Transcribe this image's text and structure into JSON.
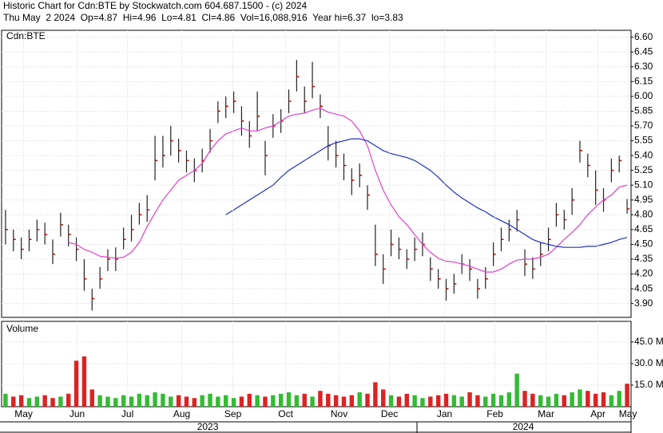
{
  "header": {
    "title": "Historic Chart for Cdn:BTE by Stockwatch.com 604.687.1500 - (c) 2024",
    "quote": "Thu May  2 2024  Op=4.87  Hi=4.96  Lo=4.81  Cl=4.86  Vol=16,088,916  Year hi=6.37  lo=3.83"
  },
  "chart_data": [
    {
      "type": "ohlc",
      "label": "Cdn:BTE",
      "color": "#222222",
      "close_color": "#cc0000",
      "grid": true,
      "xlim": [
        -0.5,
        79.5
      ],
      "ylim": [
        3.76,
        6.67
      ],
      "yticks": [
        {
          "value": 3.9,
          "label": "3.90"
        },
        4.05,
        {
          "value": 4.2,
          "label": "4.20"
        },
        4.35,
        {
          "value": 4.5,
          "label": "4.50"
        },
        4.65,
        {
          "value": 4.8,
          "label": "4.80"
        },
        4.95,
        {
          "value": 5.1,
          "label": "5.10"
        },
        5.25,
        {
          "value": 5.4,
          "label": "5.40"
        },
        5.55,
        {
          "value": 5.7,
          "label": "5.70"
        },
        5.85,
        {
          "value": 6.0,
          "label": "6.00"
        },
        6.15,
        {
          "value": 6.3,
          "label": "6.30"
        },
        6.45,
        {
          "value": 6.6,
          "label": "6.60"
        }
      ],
      "high": [
        4.85,
        4.65,
        4.57,
        4.65,
        4.75,
        4.72,
        4.55,
        4.82,
        4.7,
        4.57,
        4.35,
        4.05,
        4.27,
        4.45,
        4.47,
        4.67,
        4.8,
        4.92,
        5.0,
        5.6,
        5.6,
        5.7,
        5.57,
        5.45,
        5.37,
        5.47,
        5.67,
        5.95,
        6.0,
        6.05,
        5.9,
        5.75,
        6.05,
        5.55,
        5.82,
        5.87,
        6.07,
        6.37,
        6.1,
        6.35,
        6.02,
        5.7,
        5.55,
        5.42,
        5.27,
        5.32,
        5.1,
        4.7,
        4.4,
        4.65,
        4.57,
        4.45,
        4.57,
        4.62,
        4.37,
        4.25,
        4.15,
        4.2,
        4.4,
        4.35,
        4.15,
        4.27,
        4.52,
        4.67,
        4.75,
        4.85,
        4.45,
        4.37,
        4.52,
        4.67,
        4.92,
        4.85,
        5.07,
        5.55,
        5.42,
        5.25,
        5.07,
        5.37,
        5.4,
        4.96
      ],
      "low": [
        4.5,
        4.43,
        4.35,
        4.43,
        4.53,
        4.5,
        4.3,
        4.58,
        4.48,
        4.33,
        4.03,
        3.83,
        4.05,
        4.23,
        4.23,
        4.45,
        4.53,
        4.7,
        4.73,
        5.15,
        5.28,
        5.4,
        5.33,
        5.23,
        5.13,
        5.23,
        5.43,
        5.73,
        5.78,
        5.83,
        5.6,
        5.48,
        5.65,
        5.2,
        5.58,
        5.63,
        5.83,
        6.05,
        5.83,
        5.98,
        5.78,
        5.35,
        5.28,
        5.15,
        5.0,
        5.08,
        4.85,
        4.28,
        4.1,
        4.38,
        4.35,
        4.25,
        4.33,
        4.38,
        4.13,
        4.05,
        3.93,
        4.0,
        4.2,
        4.13,
        3.95,
        4.05,
        4.28,
        4.43,
        4.53,
        4.63,
        4.18,
        4.15,
        4.28,
        4.43,
        4.68,
        4.65,
        4.8,
        5.33,
        5.18,
        4.9,
        4.83,
        5.13,
        5.23,
        4.81
      ],
      "close": [
        4.65,
        4.55,
        4.45,
        4.55,
        4.65,
        4.6,
        4.4,
        4.7,
        4.6,
        4.45,
        4.15,
        3.95,
        4.15,
        4.35,
        4.35,
        4.55,
        4.65,
        4.8,
        4.85,
        5.35,
        5.4,
        5.55,
        5.45,
        5.35,
        5.25,
        5.35,
        5.55,
        5.85,
        5.9,
        5.95,
        5.75,
        5.6,
        5.8,
        5.4,
        5.7,
        5.75,
        5.95,
        6.2,
        5.95,
        6.1,
        5.9,
        5.5,
        5.4,
        5.3,
        5.15,
        5.2,
        5.0,
        4.4,
        4.25,
        4.5,
        4.45,
        4.35,
        4.45,
        4.5,
        4.25,
        4.15,
        4.05,
        4.1,
        4.3,
        4.25,
        4.05,
        4.15,
        4.4,
        4.55,
        4.65,
        4.75,
        4.3,
        4.25,
        4.4,
        4.55,
        4.8,
        4.75,
        4.95,
        5.45,
        5.3,
        5.05,
        4.95,
        5.25,
        5.35,
        4.86
      ],
      "lines": [
        {
          "color": "#e040d0",
          "values": [
            null,
            null,
            null,
            null,
            null,
            null,
            null,
            null,
            4.52,
            4.5,
            4.45,
            4.42,
            4.38,
            4.37,
            4.36,
            4.37,
            4.42,
            4.52,
            4.68,
            4.82,
            4.95,
            5.05,
            5.15,
            5.2,
            5.25,
            5.32,
            5.45,
            5.55,
            5.62,
            5.65,
            5.68,
            5.65,
            5.65,
            5.68,
            5.7,
            5.75,
            5.8,
            5.82,
            5.83,
            5.86,
            5.88,
            5.84,
            5.82,
            5.8,
            5.75,
            5.65,
            5.5,
            5.25,
            5.05,
            4.9,
            4.78,
            4.7,
            4.6,
            4.5,
            4.42,
            4.36,
            4.33,
            4.32,
            4.3,
            4.28,
            4.25,
            4.22,
            4.22,
            4.25,
            4.3,
            4.34,
            4.35,
            4.35,
            4.37,
            4.4,
            4.47,
            4.55,
            4.62,
            4.7,
            4.8,
            4.88,
            4.95,
            5.0,
            5.08,
            5.1
          ]
        },
        {
          "color": "#2030c0",
          "values": [
            null,
            null,
            null,
            null,
            null,
            null,
            null,
            null,
            null,
            null,
            null,
            null,
            null,
            null,
            null,
            null,
            null,
            null,
            null,
            null,
            null,
            null,
            null,
            null,
            null,
            null,
            null,
            null,
            4.8,
            4.85,
            4.9,
            4.95,
            5.0,
            5.05,
            5.1,
            5.18,
            5.25,
            5.3,
            5.35,
            5.4,
            5.45,
            5.5,
            5.53,
            5.55,
            5.57,
            5.57,
            5.55,
            5.5,
            5.45,
            5.42,
            5.4,
            5.38,
            5.35,
            5.3,
            5.25,
            5.18,
            5.1,
            5.03,
            4.97,
            4.92,
            4.87,
            4.83,
            4.78,
            4.74,
            4.7,
            4.65,
            4.6,
            4.55,
            4.52,
            4.5,
            4.48,
            4.47,
            4.47,
            4.47,
            4.48,
            4.48,
            4.5,
            4.52,
            4.55,
            4.57
          ]
        }
      ]
    },
    {
      "type": "bar",
      "title": "Volume",
      "up_color": "#33bb33",
      "down_color": "#dd2222",
      "grid": true,
      "xlim": [
        -0.5,
        79.5
      ],
      "ylim": [
        0,
        59.4
      ],
      "yticks": [
        {
          "value": 15,
          "label": "15.0 M"
        },
        {
          "value": 30,
          "label": "30.0 M"
        },
        {
          "value": 45,
          "label": "45.0 M"
        }
      ],
      "values": [
        9,
        7,
        8,
        6,
        7,
        8,
        6,
        7,
        9,
        32,
        35,
        12,
        8,
        7,
        6,
        8,
        7,
        9,
        8,
        10,
        9,
        7,
        8,
        7,
        6,
        8,
        9,
        7,
        8,
        6,
        7,
        9,
        8,
        7,
        8,
        9,
        10,
        8,
        9,
        7,
        11,
        9,
        8,
        7,
        8,
        10,
        9,
        17,
        12,
        8,
        7,
        9,
        8,
        6,
        7,
        8,
        9,
        8,
        7,
        10,
        8,
        7,
        9,
        8,
        10,
        23,
        11,
        9,
        8,
        7,
        9,
        8,
        10,
        12,
        11,
        9,
        10,
        8,
        11,
        16
      ],
      "xticks": [
        {
          "value": 2.3,
          "label": "May"
        },
        {
          "value": 9.1,
          "label": "Jun"
        },
        {
          "value": 15.5,
          "label": "Jul"
        },
        {
          "value": 22.4,
          "label": "Aug"
        },
        {
          "value": 28.9,
          "label": "Sep"
        },
        {
          "value": 35.6,
          "label": "Oct"
        },
        {
          "value": 42.4,
          "label": "Nov"
        },
        {
          "value": 48.8,
          "label": "Dec"
        },
        {
          "value": 55.8,
          "label": "Jan"
        },
        {
          "value": 62.2,
          "label": "Feb"
        },
        {
          "value": 68.7,
          "label": "Mar"
        },
        {
          "value": 75.3,
          "label": "Apr"
        },
        {
          "value": 79.1,
          "label": "May"
        }
      ],
      "years": [
        {
          "value": 25.7,
          "label": "2023"
        },
        {
          "value": 65.8,
          "label": "2024"
        }
      ]
    }
  ]
}
